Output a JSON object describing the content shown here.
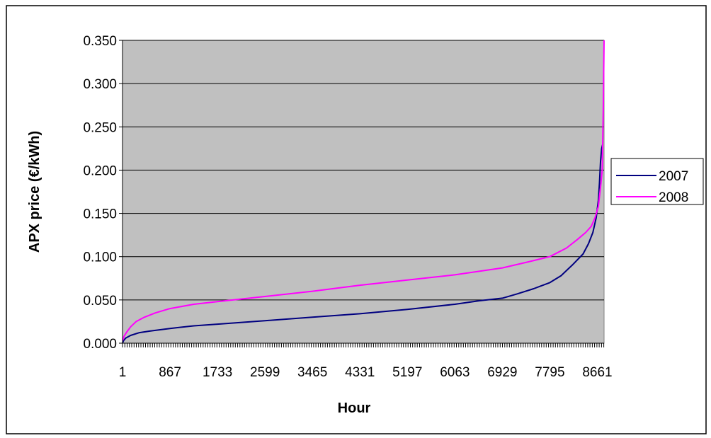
{
  "chart_data": {
    "type": "line",
    "title": "",
    "xlabel": "Hour",
    "ylabel": "APX price (€/kWh)",
    "xlim": [
      1,
      8784
    ],
    "ylim": [
      0,
      0.35
    ],
    "yticks": [
      "0.000",
      "0.050",
      "0.100",
      "0.150",
      "0.200",
      "0.250",
      "0.300",
      "0.350"
    ],
    "xticks": [
      {
        "value": 1,
        "label": "1"
      },
      {
        "value": 867,
        "label": "867"
      },
      {
        "value": 1733,
        "label": "1733"
      },
      {
        "value": 2599,
        "label": "2599"
      },
      {
        "value": 3465,
        "label": "3465"
      },
      {
        "value": 4331,
        "label": "4331"
      },
      {
        "value": 5197,
        "label": "5197"
      },
      {
        "value": 6063,
        "label": "6063"
      },
      {
        "value": 6929,
        "label": "6929"
      },
      {
        "value": 7795,
        "label": "7795"
      },
      {
        "value": 8661,
        "label": "8661"
      }
    ],
    "grid": true,
    "legend_position": "right",
    "plot_background": "#c0c0c0",
    "series": [
      {
        "name": "2007",
        "color": "#000080",
        "x": [
          1,
          20,
          60,
          150,
          300,
          500,
          867,
          1300,
          1733,
          2599,
          3465,
          4331,
          5197,
          6063,
          6500,
          6929,
          7200,
          7500,
          7795,
          8000,
          8200,
          8400,
          8500,
          8580,
          8640,
          8680,
          8700,
          8720,
          8740,
          8760
        ],
        "y": [
          0.0,
          0.003,
          0.006,
          0.009,
          0.012,
          0.014,
          0.017,
          0.02,
          0.022,
          0.026,
          0.03,
          0.034,
          0.039,
          0.045,
          0.049,
          0.052,
          0.057,
          0.063,
          0.07,
          0.078,
          0.09,
          0.103,
          0.115,
          0.128,
          0.145,
          0.165,
          0.185,
          0.21,
          0.225,
          0.23
        ]
      },
      {
        "name": "2008",
        "color": "#ff00ff",
        "x": [
          1,
          30,
          80,
          150,
          250,
          400,
          600,
          867,
          1300,
          1733,
          2599,
          3465,
          4331,
          5197,
          6063,
          6929,
          7400,
          7795,
          8100,
          8300,
          8450,
          8550,
          8620,
          8680,
          8720,
          8750,
          8770,
          8784
        ],
        "y": [
          0.003,
          0.008,
          0.013,
          0.019,
          0.025,
          0.03,
          0.035,
          0.04,
          0.045,
          0.048,
          0.054,
          0.06,
          0.067,
          0.073,
          0.079,
          0.087,
          0.094,
          0.1,
          0.11,
          0.12,
          0.128,
          0.135,
          0.145,
          0.158,
          0.18,
          0.2,
          0.27,
          0.35
        ]
      }
    ]
  }
}
